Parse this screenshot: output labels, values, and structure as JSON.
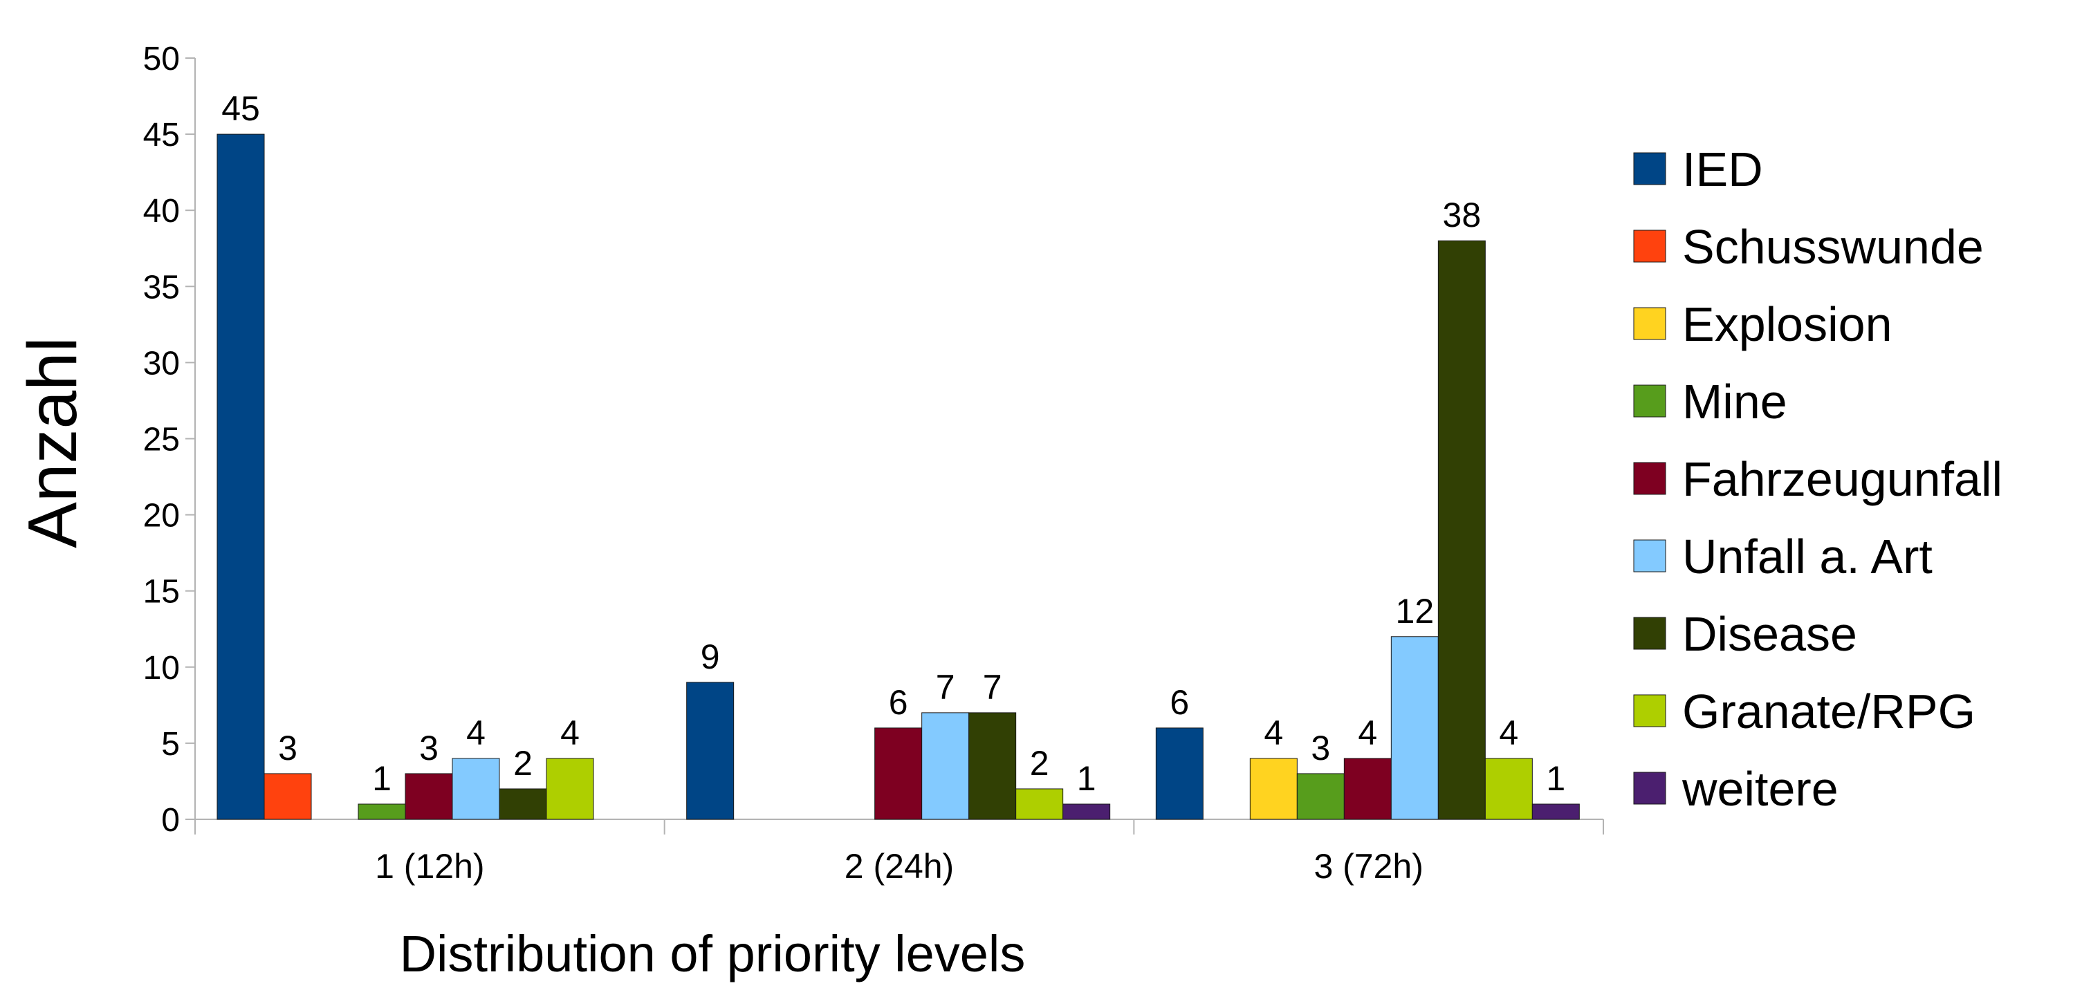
{
  "chart_data": {
    "type": "bar",
    "title": "",
    "xlabel": "Distribution of priority levels",
    "ylabel": "Anzahl",
    "ylim": [
      0,
      50
    ],
    "yticks": [
      0,
      5,
      10,
      15,
      20,
      25,
      30,
      35,
      40,
      45,
      50
    ],
    "categories": [
      "1 (12h)",
      "2 (24h)",
      "3 (72h)"
    ],
    "legend_position": "right",
    "grid": false,
    "data_labels": true,
    "series": [
      {
        "name": "IED",
        "color": "#004586",
        "values": [
          45,
          9,
          6
        ]
      },
      {
        "name": "Schusswunde",
        "color": "#ff420e",
        "values": [
          3,
          0,
          0
        ]
      },
      {
        "name": "Explosion",
        "color": "#ffd320",
        "values": [
          0,
          0,
          4
        ]
      },
      {
        "name": "Mine",
        "color": "#579d1c",
        "values": [
          1,
          0,
          3
        ]
      },
      {
        "name": "Fahrzeugunfall",
        "color": "#7e0021",
        "values": [
          3,
          6,
          4
        ]
      },
      {
        "name": "Unfall a. Art",
        "color": "#83caff",
        "values": [
          4,
          7,
          12
        ]
      },
      {
        "name": "Disease",
        "color": "#314004",
        "values": [
          2,
          7,
          38
        ]
      },
      {
        "name": "Granate/RPG",
        "color": "#aecf00",
        "values": [
          4,
          2,
          4
        ]
      },
      {
        "name": "weitere",
        "color": "#4b1f6f",
        "values": [
          0,
          1,
          1
        ]
      }
    ]
  }
}
